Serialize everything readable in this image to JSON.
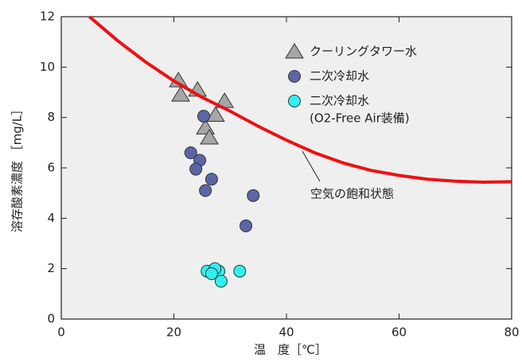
{
  "chart_data": {
    "type": "scatter",
    "xlabel": "温　度［℃］",
    "ylabel": "溶存酸素濃度 ［mg/L］",
    "xlim": [
      0,
      80
    ],
    "ylim": [
      0,
      12
    ],
    "xticks": [
      0,
      20,
      40,
      60,
      80
    ],
    "yticks": [
      0,
      2,
      4,
      6,
      8,
      10,
      12
    ],
    "annotation": "空気の飽和状態",
    "series": [
      {
        "name": "クーリングタワー水",
        "marker": "triangle",
        "color": "#a6a6a6",
        "x": [
          20.8,
          21.2,
          24.2,
          29.0,
          27.4,
          25.6,
          26.3
        ],
        "values": [
          9.47,
          8.9,
          9.1,
          8.65,
          8.1,
          7.6,
          7.2
        ]
      },
      {
        "name": "二次冷却水",
        "marker": "circle",
        "color": "#5a66a8",
        "x": [
          25.3,
          23.0,
          24.6,
          23.9,
          26.7,
          25.6,
          34.1,
          32.8
        ],
        "values": [
          8.05,
          6.6,
          6.3,
          5.95,
          5.55,
          5.1,
          4.9,
          3.7
        ]
      },
      {
        "name": "二次冷却水",
        "name_sub": "(O2-Free Air装備)",
        "marker": "circle",
        "color": "#2ff0f0",
        "x": [
          25.9,
          27.0,
          28.0,
          27.3,
          31.7,
          28.4,
          26.7
        ],
        "values": [
          1.9,
          1.85,
          1.9,
          2.0,
          1.9,
          1.5,
          1.8
        ]
      },
      {
        "marker": "line",
        "color": "#ee1111",
        "x": [
          5,
          10,
          15,
          20,
          25,
          30,
          35,
          40,
          45,
          50,
          55,
          60,
          65,
          70,
          75,
          80
        ],
        "values": [
          12.0,
          11.05,
          10.2,
          9.45,
          8.8,
          8.25,
          7.65,
          7.1,
          6.6,
          6.2,
          5.9,
          5.7,
          5.55,
          5.47,
          5.43,
          5.45
        ]
      }
    ]
  }
}
